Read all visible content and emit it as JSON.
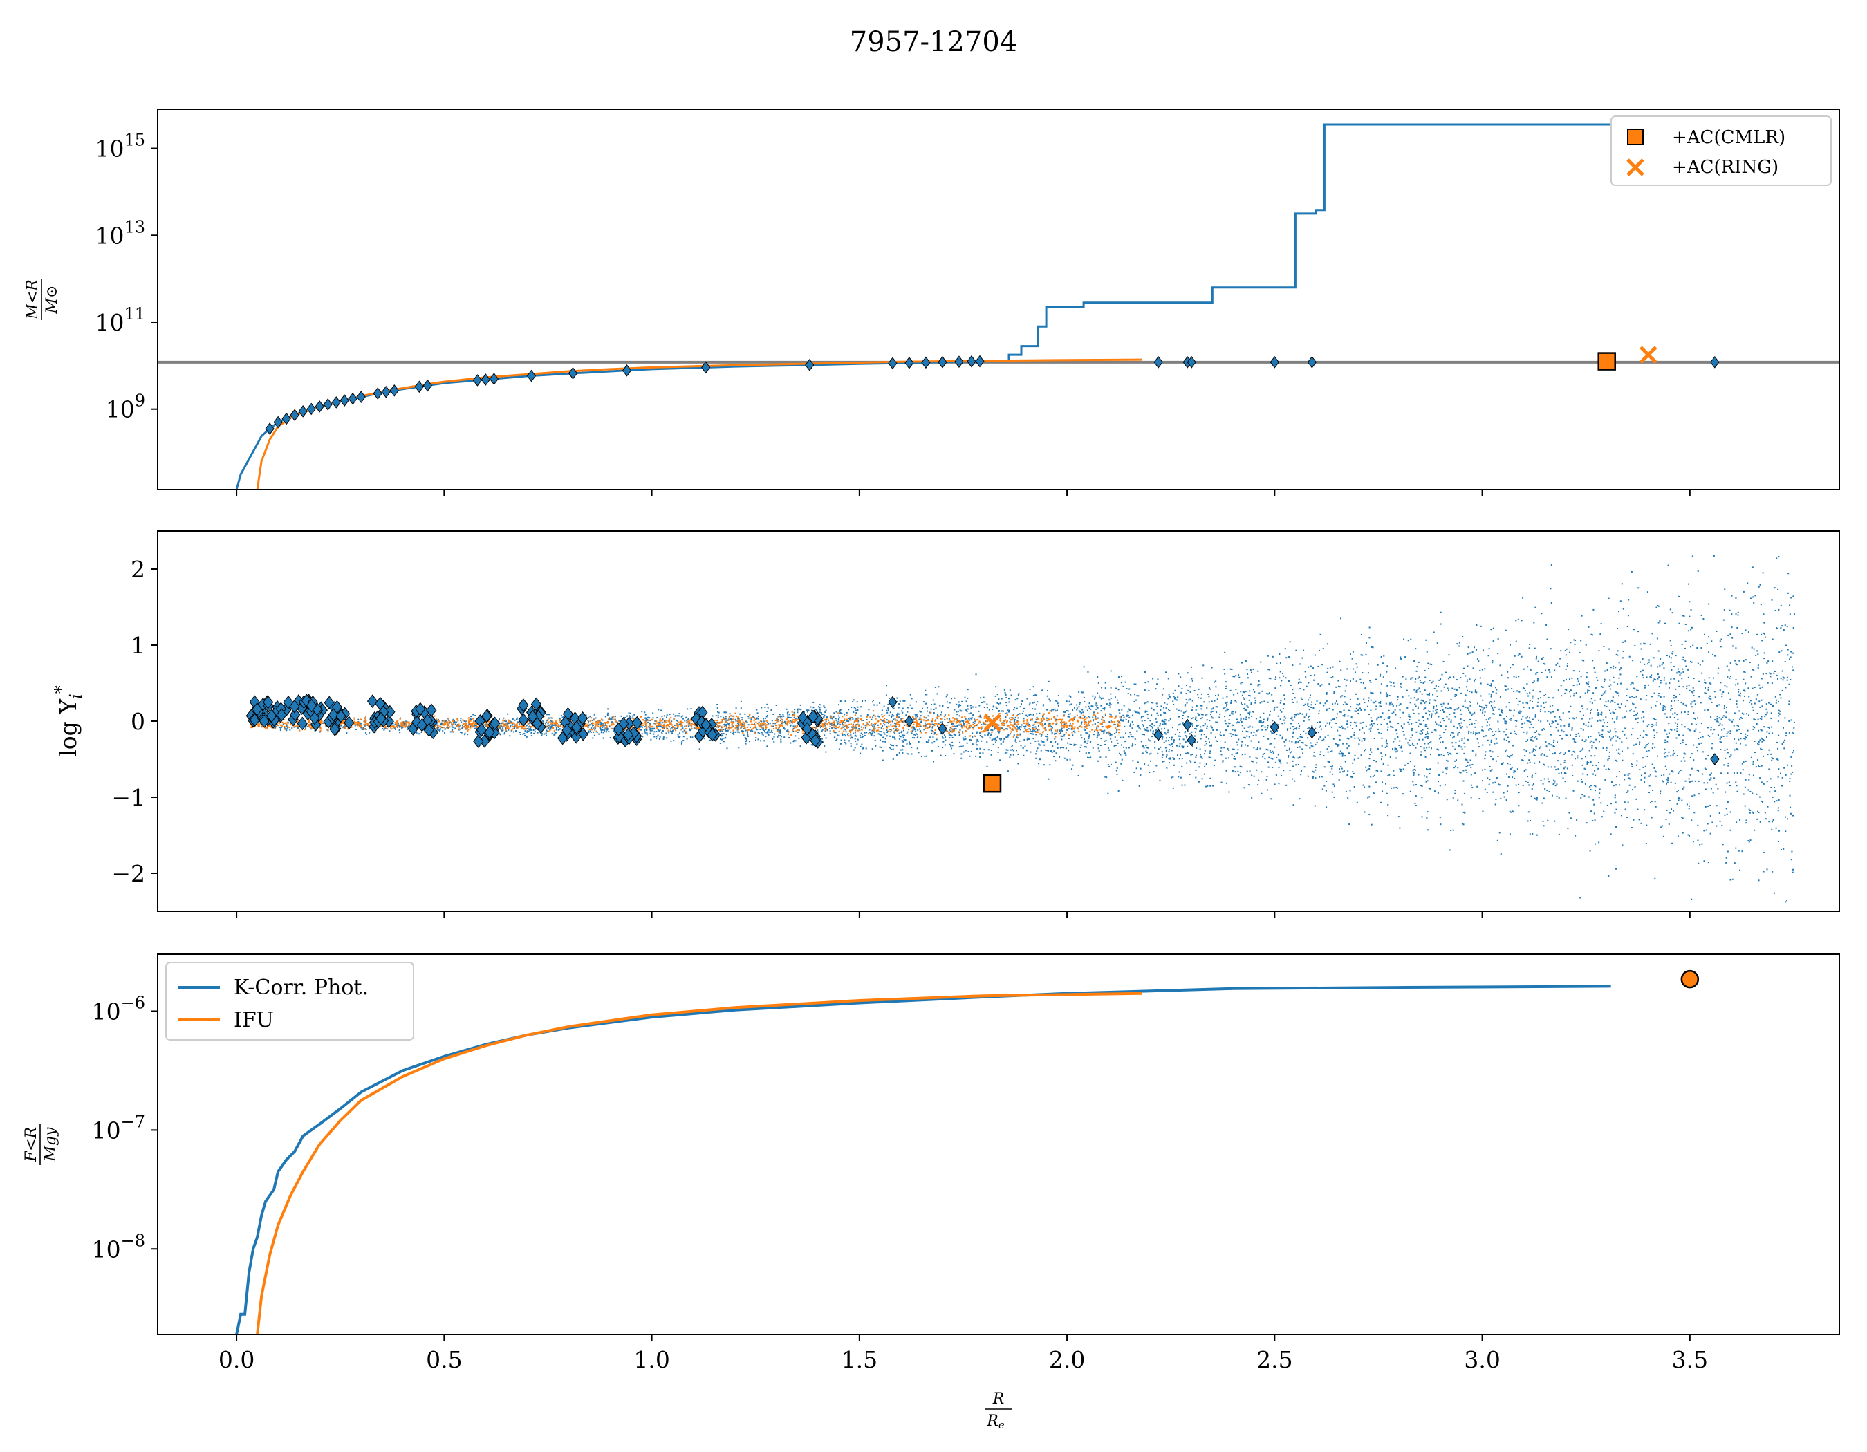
{
  "title": "7957-12704",
  "xlabel": {
    "num": "R",
    "den": "R",
    "den_sub": "e"
  },
  "colors": {
    "blue": "#1f77b4",
    "orange": "#ff7f0e",
    "gray": "#808080",
    "black": "#000000"
  },
  "x_ticks": [
    "0.0",
    "0.5",
    "1.0",
    "1.5",
    "2.0",
    "2.5",
    "3.0",
    "3.5"
  ],
  "chart_data": [
    {
      "id": "top",
      "type": "line",
      "ylabel": {
        "num": "M<R",
        "den": "M⊙"
      },
      "y_scale": "log",
      "xlim": [
        -0.19,
        3.86
      ],
      "ylim_log10": [
        7.15,
        15.9
      ],
      "y_ticks": [
        {
          "base": "10",
          "exp": "9",
          "v": 9
        },
        {
          "base": "10",
          "exp": "11",
          "v": 11
        },
        {
          "base": "10",
          "exp": "13",
          "v": 13
        },
        {
          "base": "10",
          "exp": "15",
          "v": 15
        }
      ],
      "hline": 10.08,
      "series": [
        {
          "color": "blue",
          "points": [
            [
              0.0,
              7.15
            ],
            [
              0.01,
              7.5
            ],
            [
              0.03,
              7.85
            ],
            [
              0.05,
              8.2
            ],
            [
              0.06,
              8.38
            ],
            [
              0.08,
              8.55
            ],
            [
              0.1,
              8.7
            ],
            [
              0.13,
              8.82
            ],
            [
              0.16,
              8.95
            ],
            [
              0.2,
              9.06
            ],
            [
              0.25,
              9.18
            ],
            [
              0.3,
              9.28
            ],
            [
              0.35,
              9.38
            ],
            [
              0.4,
              9.46
            ],
            [
              0.45,
              9.53
            ],
            [
              0.5,
              9.6
            ],
            [
              0.6,
              9.68
            ],
            [
              0.7,
              9.76
            ],
            [
              0.8,
              9.82
            ],
            [
              0.9,
              9.87
            ],
            [
              1.0,
              9.92
            ],
            [
              1.1,
              9.95
            ],
            [
              1.2,
              9.98
            ],
            [
              1.3,
              10.0
            ],
            [
              1.4,
              10.02
            ],
            [
              1.5,
              10.04
            ],
            [
              1.6,
              10.06
            ],
            [
              1.7,
              10.08
            ],
            [
              1.78,
              10.1
            ],
            [
              1.86,
              10.1
            ],
            [
              1.86,
              10.25
            ],
            [
              1.89,
              10.25
            ],
            [
              1.89,
              10.45
            ],
            [
              1.93,
              10.45
            ],
            [
              1.93,
              10.9
            ],
            [
              1.95,
              10.9
            ],
            [
              1.95,
              11.35
            ],
            [
              2.04,
              11.35
            ],
            [
              2.04,
              11.45
            ],
            [
              2.35,
              11.45
            ],
            [
              2.35,
              11.8
            ],
            [
              2.55,
              11.8
            ],
            [
              2.55,
              13.5
            ],
            [
              2.6,
              13.5
            ],
            [
              2.6,
              13.58
            ],
            [
              2.62,
              13.58
            ],
            [
              2.62,
              15.55
            ],
            [
              3.31,
              15.55
            ]
          ]
        },
        {
          "color": "orange",
          "points": [
            [
              0.05,
              7.15
            ],
            [
              0.06,
              7.8
            ],
            [
              0.08,
              8.3
            ],
            [
              0.1,
              8.6
            ],
            [
              0.13,
              8.8
            ],
            [
              0.16,
              8.93
            ],
            [
              0.2,
              9.05
            ],
            [
              0.25,
              9.18
            ],
            [
              0.3,
              9.3
            ],
            [
              0.35,
              9.4
            ],
            [
              0.4,
              9.48
            ],
            [
              0.45,
              9.56
            ],
            [
              0.5,
              9.63
            ],
            [
              0.6,
              9.73
            ],
            [
              0.7,
              9.8
            ],
            [
              0.8,
              9.87
            ],
            [
              0.9,
              9.92
            ],
            [
              1.0,
              9.96
            ],
            [
              1.2,
              10.01
            ],
            [
              1.4,
              10.05
            ],
            [
              1.6,
              10.09
            ],
            [
              1.8,
              10.11
            ],
            [
              2.0,
              10.13
            ],
            [
              2.18,
              10.14
            ]
          ]
        }
      ],
      "markers": [
        {
          "label": "+AC(CMLR)",
          "shape": "square",
          "x": 3.3,
          "y": 10.1
        },
        {
          "label": "+AC(RING)",
          "shape": "x",
          "x": 3.4,
          "y": 10.25
        }
      ],
      "legend": {
        "loc": "upper right",
        "entries": [
          "+AC(CMLR)",
          "+AC(RING)"
        ]
      }
    },
    {
      "id": "middle",
      "type": "scatter",
      "ylabel": {
        "prefix": "log ",
        "sym": "Υ",
        "sub": "i",
        "sup": "*"
      },
      "xlim": [
        -0.19,
        3.86
      ],
      "ylim": [
        -2.5,
        2.5
      ],
      "y_ticks": [
        {
          "t": "−2",
          "v": -2
        },
        {
          "t": "−1",
          "v": -1
        },
        {
          "t": "0",
          "v": 0
        },
        {
          "t": "1",
          "v": 1
        },
        {
          "t": "2",
          "v": 2
        }
      ],
      "markers": [
        {
          "shape": "square",
          "x": 1.82,
          "y": -0.82
        },
        {
          "shape": "x",
          "x": 1.82,
          "y": -0.02
        }
      ],
      "isolated_points": [
        [
          2.22,
          -0.18
        ],
        [
          2.29,
          -0.05
        ],
        [
          2.3,
          -0.25
        ],
        [
          2.5,
          -0.08
        ],
        [
          2.59,
          -0.15
        ],
        [
          3.56,
          -0.5
        ],
        [
          1.58,
          0.25
        ],
        [
          1.62,
          0.0
        ],
        [
          1.7,
          -0.1
        ]
      ]
    },
    {
      "id": "bottom",
      "type": "line",
      "ylabel": {
        "num": "F<R",
        "den": "Mgy"
      },
      "y_scale": "log",
      "xlim": [
        -0.19,
        3.86
      ],
      "ylim_log10": [
        -8.72,
        -5.52
      ],
      "y_ticks": [
        {
          "base": "10",
          "exp": "−8",
          "v": -8
        },
        {
          "base": "10",
          "exp": "−7",
          "v": -7
        },
        {
          "base": "10",
          "exp": "−6",
          "v": -6
        }
      ],
      "series": [
        {
          "name": "K-Corr. Phot.",
          "color": "blue",
          "points": [
            [
              0.0,
              -8.72
            ],
            [
              0.01,
              -8.55
            ],
            [
              0.02,
              -8.55
            ],
            [
              0.03,
              -8.2
            ],
            [
              0.04,
              -8.0
            ],
            [
              0.05,
              -7.9
            ],
            [
              0.06,
              -7.72
            ],
            [
              0.07,
              -7.6
            ],
            [
              0.09,
              -7.5
            ],
            [
              0.1,
              -7.35
            ],
            [
              0.12,
              -7.25
            ],
            [
              0.14,
              -7.18
            ],
            [
              0.16,
              -7.05
            ],
            [
              0.2,
              -6.95
            ],
            [
              0.25,
              -6.82
            ],
            [
              0.3,
              -6.68
            ],
            [
              0.4,
              -6.5
            ],
            [
              0.5,
              -6.38
            ],
            [
              0.6,
              -6.28
            ],
            [
              0.7,
              -6.2
            ],
            [
              0.8,
              -6.14
            ],
            [
              1.0,
              -6.05
            ],
            [
              1.2,
              -5.99
            ],
            [
              1.5,
              -5.93
            ],
            [
              1.8,
              -5.88
            ],
            [
              2.0,
              -5.85
            ],
            [
              2.4,
              -5.81
            ],
            [
              2.8,
              -5.8
            ],
            [
              3.31,
              -5.79
            ]
          ]
        },
        {
          "name": "IFU",
          "color": "orange",
          "points": [
            [
              0.05,
              -8.72
            ],
            [
              0.06,
              -8.4
            ],
            [
              0.08,
              -8.05
            ],
            [
              0.1,
              -7.8
            ],
            [
              0.13,
              -7.55
            ],
            [
              0.16,
              -7.35
            ],
            [
              0.2,
              -7.12
            ],
            [
              0.25,
              -6.92
            ],
            [
              0.3,
              -6.75
            ],
            [
              0.4,
              -6.55
            ],
            [
              0.5,
              -6.4
            ],
            [
              0.6,
              -6.29
            ],
            [
              0.7,
              -6.2
            ],
            [
              0.8,
              -6.13
            ],
            [
              1.0,
              -6.03
            ],
            [
              1.2,
              -5.97
            ],
            [
              1.5,
              -5.91
            ],
            [
              1.8,
              -5.87
            ],
            [
              2.0,
              -5.86
            ],
            [
              2.18,
              -5.85
            ]
          ]
        }
      ],
      "markers": [
        {
          "shape": "circle",
          "x": 3.5,
          "y": -5.73
        }
      ],
      "legend": {
        "loc": "upper left",
        "entries": [
          "K-Corr. Phot.",
          "IFU"
        ]
      }
    }
  ]
}
